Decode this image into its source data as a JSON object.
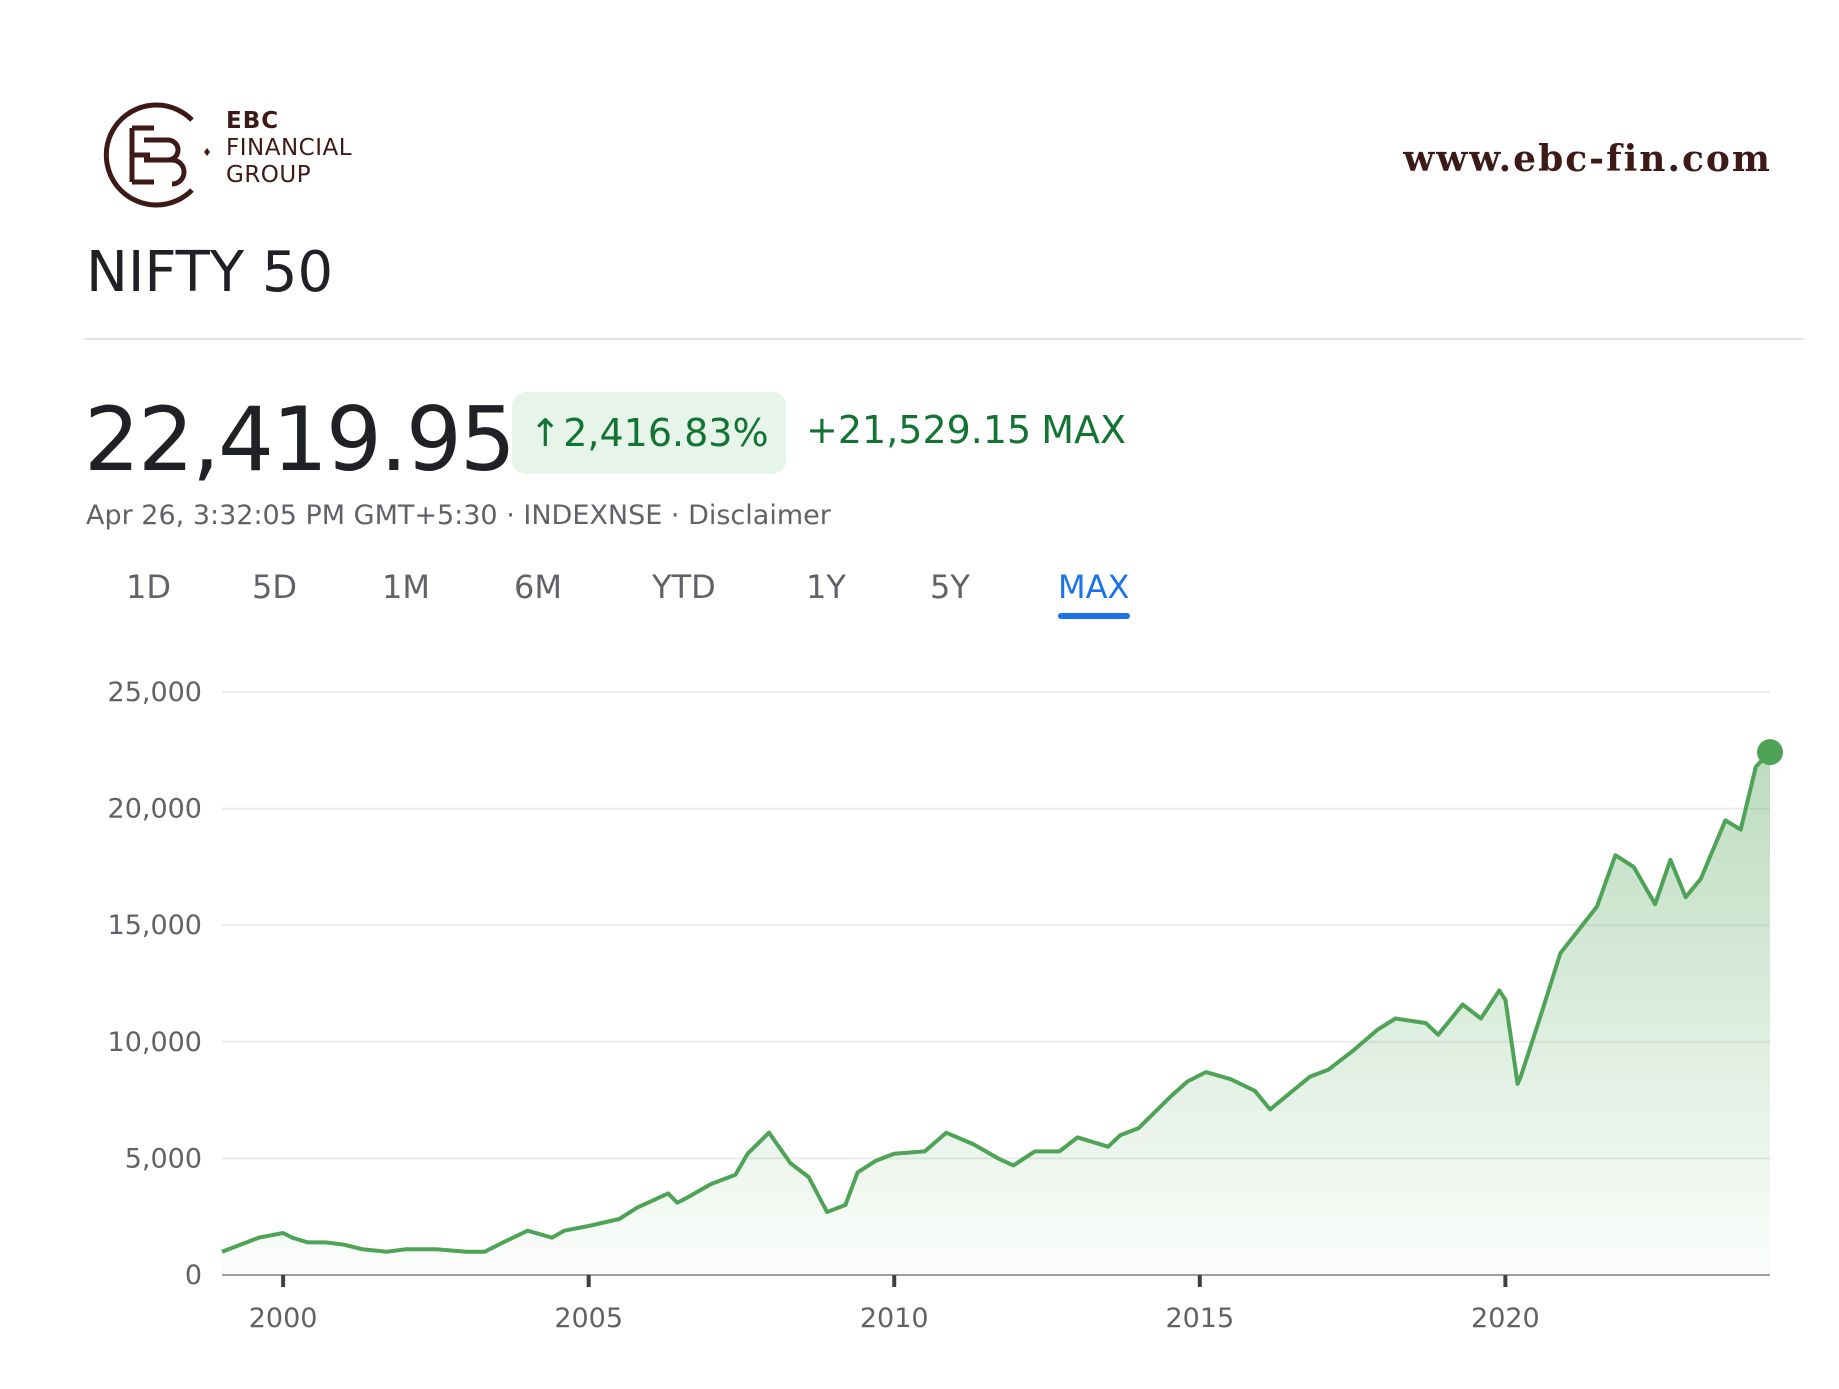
{
  "brand": {
    "line1": "EBC",
    "line2": "FINANCIAL",
    "line3": "GROUP",
    "website": "www.ebc-fin.com",
    "color": "#3d1a17",
    "logo_icon": "ebc-monogram-icon"
  },
  "quote": {
    "title": "NIFTY 50",
    "price": "22,419.95",
    "change_pct": "2,416.83%",
    "change_arrow": "↑",
    "change_abs": "+21,529.15",
    "period": "MAX",
    "timestamp": "Apr 26, 3:32:05 PM GMT+5:30",
    "separator": "·",
    "exchange": "INDEXNSE",
    "disclaimer": "Disclaimer",
    "up_color": "#137333",
    "badge_bg": "#e6f4ea"
  },
  "tabs": [
    {
      "label": "1D",
      "active": false
    },
    {
      "label": "5D",
      "active": false
    },
    {
      "label": "1M",
      "active": false
    },
    {
      "label": "6M",
      "active": false
    },
    {
      "label": "YTD",
      "active": false
    },
    {
      "label": "1Y",
      "active": false
    },
    {
      "label": "5Y",
      "active": false
    },
    {
      "label": "MAX",
      "active": true
    }
  ],
  "chart_data": {
    "type": "area",
    "title": "",
    "xlabel": "",
    "ylabel": "",
    "xlim": [
      1999.0,
      2024.33
    ],
    "ylim": [
      0,
      25000
    ],
    "yticks": [
      0,
      5000,
      10000,
      15000,
      20000,
      25000
    ],
    "ytick_labels": [
      "0",
      "5,000",
      "10,000",
      "15,000",
      "20,000",
      "25,000"
    ],
    "xticks": [
      2000,
      2005,
      2010,
      2015,
      2020
    ],
    "xtick_labels": [
      "2000",
      "2005",
      "2010",
      "2015",
      "2020"
    ],
    "grid": true,
    "line_color": "#4ea356",
    "series": [
      {
        "name": "",
        "x": [
          1999.0,
          1999.3,
          1999.6,
          2000.0,
          2000.15,
          2000.4,
          2000.7,
          2001.0,
          2001.3,
          2001.7,
          2002.0,
          2002.5,
          2003.0,
          2003.3,
          2003.6,
          2004.0,
          2004.4,
          2004.6,
          2005.0,
          2005.5,
          2005.8,
          2006.3,
          2006.45,
          2006.6,
          2007.0,
          2007.4,
          2007.6,
          2007.95,
          2008.3,
          2008.6,
          2008.9,
          2009.2,
          2009.4,
          2009.7,
          2010.0,
          2010.5,
          2010.85,
          2011.3,
          2011.7,
          2011.95,
          2012.3,
          2012.7,
          2013.0,
          2013.5,
          2013.7,
          2014.0,
          2014.5,
          2014.8,
          2015.1,
          2015.5,
          2015.9,
          2016.15,
          2016.8,
          2017.1,
          2017.5,
          2017.9,
          2018.2,
          2018.7,
          2018.9,
          2019.3,
          2019.6,
          2019.9,
          2020.0,
          2020.2,
          2020.25,
          2020.6,
          2020.9,
          2021.2,
          2021.5,
          2021.8,
          2022.1,
          2022.45,
          2022.7,
          2022.95,
          2023.2,
          2023.6,
          2023.85,
          2024.1,
          2024.33
        ],
        "values": [
          1000,
          1300,
          1600,
          1800,
          1600,
          1400,
          1400,
          1300,
          1100,
          1000,
          1100,
          1100,
          1000,
          1000,
          1400,
          1900,
          1600,
          1900,
          2100,
          2400,
          2900,
          3500,
          3100,
          3300,
          3900,
          4300,
          5200,
          6100,
          4800,
          4200,
          2700,
          3000,
          4400,
          4900,
          5200,
          5300,
          6100,
          5600,
          5000,
          4700,
          5300,
          5300,
          5900,
          5500,
          6000,
          6300,
          7600,
          8300,
          8700,
          8400,
          7900,
          7100,
          8500,
          8800,
          9600,
          10500,
          11000,
          10800,
          10300,
          11600,
          11000,
          12200,
          11800,
          8200,
          8500,
          11300,
          13800,
          14800,
          15800,
          18000,
          17500,
          15900,
          17800,
          16200,
          17000,
          19500,
          19100,
          21800,
          22419.95
        ]
      }
    ]
  }
}
